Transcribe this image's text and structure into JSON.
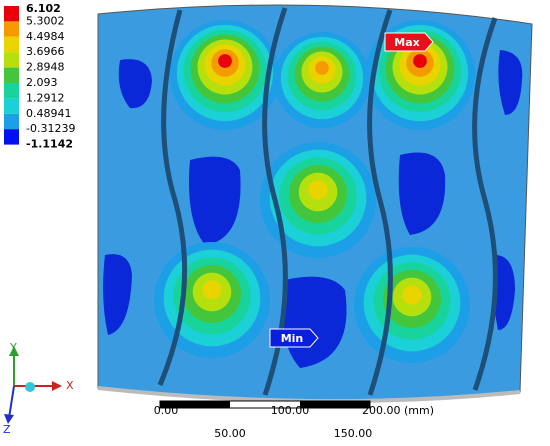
{
  "legend": {
    "values": [
      "6.102",
      "5.3002",
      "4.4984",
      "3.6966",
      "2.8948",
      "2.093",
      "1.2912",
      "0.48941",
      "-0.31239",
      "-1.1142"
    ]
  },
  "probes": {
    "max": "Max",
    "min": "Min"
  },
  "triad": {
    "x": "X",
    "y": "Y",
    "z": "Z"
  },
  "scale_bar": {
    "top": [
      "0.00",
      "100.00",
      "200.00 (mm)"
    ],
    "bottom": [
      "50.00",
      "150.00"
    ]
  }
}
